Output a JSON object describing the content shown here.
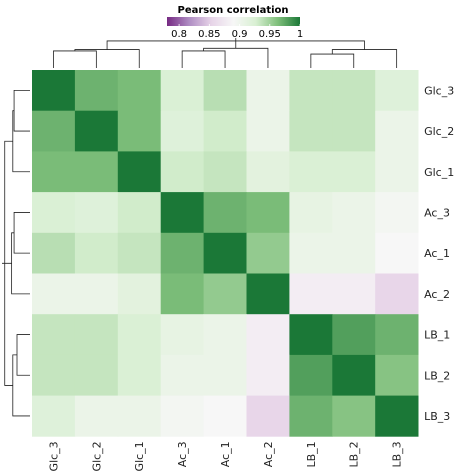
{
  "chart_data": {
    "type": "heatmap",
    "title": "",
    "legend": {
      "title": "Pearson correlation",
      "ticks": [
        "0.8",
        "0.85",
        "0.9",
        "0.95",
        "1"
      ],
      "tick_values": [
        0.8,
        0.85,
        0.9,
        0.95,
        1.0
      ],
      "range": [
        0.78,
        1.0
      ],
      "placement": "top-center",
      "colors": [
        "#762a83",
        "#af8dc3",
        "#e7d4e8",
        "#f7f7f7",
        "#d9f0d3",
        "#7fbf7b",
        "#1b7837"
      ]
    },
    "rows": [
      "Glc_3",
      "Glc_2",
      "Glc_1",
      "Ac_3",
      "Ac_1",
      "Ac_2",
      "LB_1",
      "LB_2",
      "LB_3"
    ],
    "columns": [
      "Glc_3",
      "Glc_2",
      "Glc_1",
      "Ac_3",
      "Ac_1",
      "Ac_2",
      "LB_1",
      "LB_2",
      "LB_3"
    ],
    "values": [
      [
        1.0,
        0.97,
        0.965,
        0.925,
        0.94,
        0.905,
        0.935,
        0.935,
        0.92
      ],
      [
        0.97,
        1.0,
        0.965,
        0.92,
        0.93,
        0.905,
        0.935,
        0.935,
        0.905
      ],
      [
        0.965,
        0.965,
        1.0,
        0.93,
        0.935,
        0.915,
        0.925,
        0.925,
        0.905
      ],
      [
        0.925,
        0.92,
        0.93,
        1.0,
        0.97,
        0.965,
        0.91,
        0.905,
        0.895
      ],
      [
        0.94,
        0.93,
        0.935,
        0.97,
        1.0,
        0.955,
        0.905,
        0.905,
        0.89
      ],
      [
        0.905,
        0.905,
        0.915,
        0.965,
        0.955,
        1.0,
        0.88,
        0.88,
        0.855
      ],
      [
        0.935,
        0.935,
        0.925,
        0.91,
        0.905,
        0.88,
        1.0,
        0.98,
        0.97
      ],
      [
        0.935,
        0.935,
        0.925,
        0.905,
        0.905,
        0.88,
        0.98,
        1.0,
        0.96
      ],
      [
        0.92,
        0.905,
        0.905,
        0.895,
        0.89,
        0.855,
        0.97,
        0.96,
        1.0
      ]
    ],
    "row_dendrogram": "left",
    "column_dendrogram": "top",
    "grid": false
  }
}
